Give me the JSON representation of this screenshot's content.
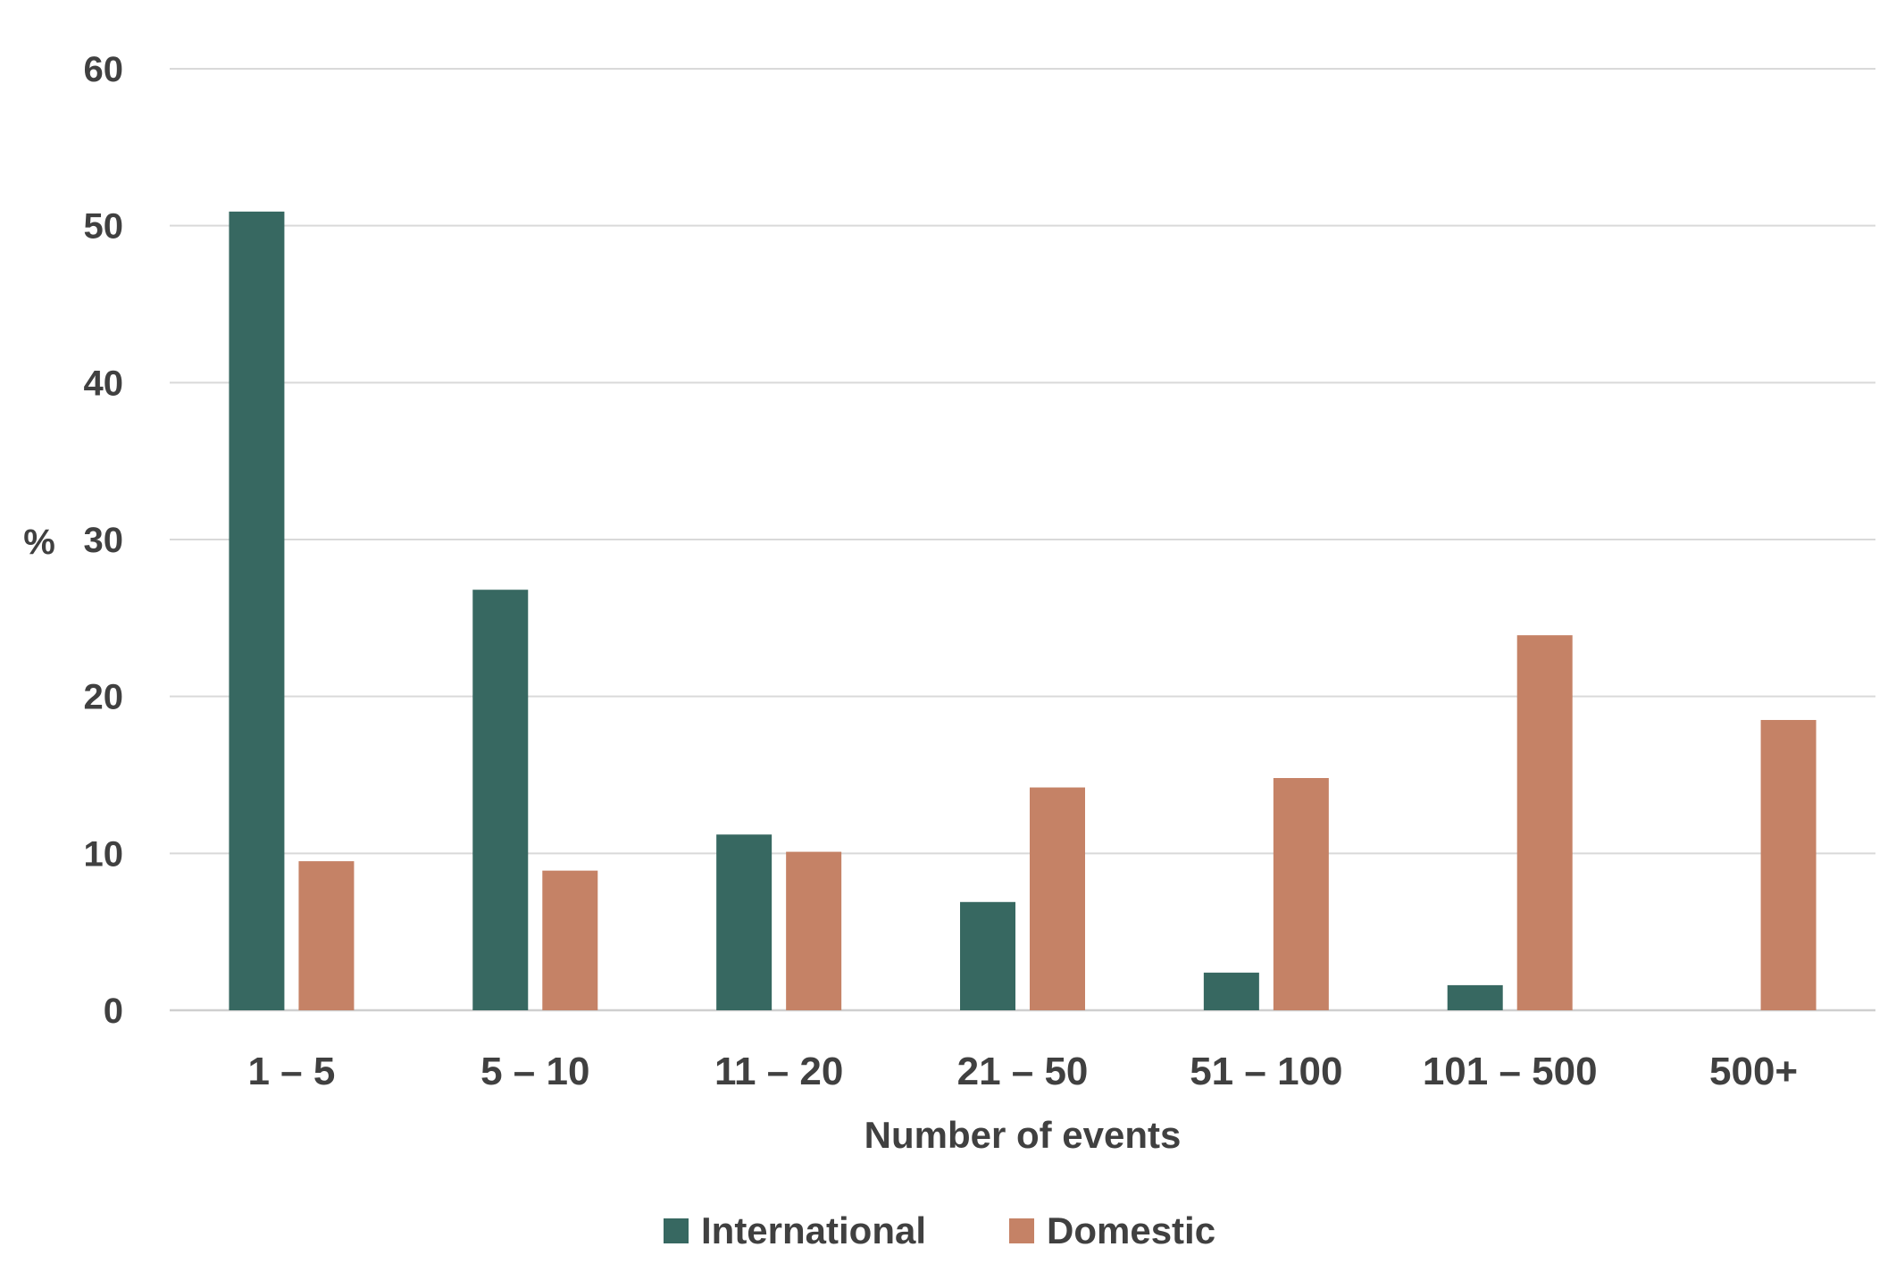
{
  "chart_data": {
    "type": "bar",
    "title": "",
    "xlabel": "Number of events",
    "ylabel": "%",
    "ylim": [
      0,
      60
    ],
    "yticks": [
      0,
      10,
      20,
      30,
      40,
      50,
      60
    ],
    "grid": true,
    "legend_position": "bottom-center",
    "categories": [
      "1 – 5",
      "5 – 10",
      "11 – 20",
      "21 – 50",
      "51 – 100",
      "101 – 500",
      "500+"
    ],
    "series": [
      {
        "name": "International",
        "color": "#376861",
        "values": [
          50.9,
          26.8,
          11.2,
          6.9,
          2.4,
          1.6,
          0
        ]
      },
      {
        "name": "Domestic",
        "color": "#c58266",
        "values": [
          9.5,
          8.9,
          10.1,
          14.2,
          14.8,
          23.9,
          18.5
        ]
      }
    ]
  }
}
